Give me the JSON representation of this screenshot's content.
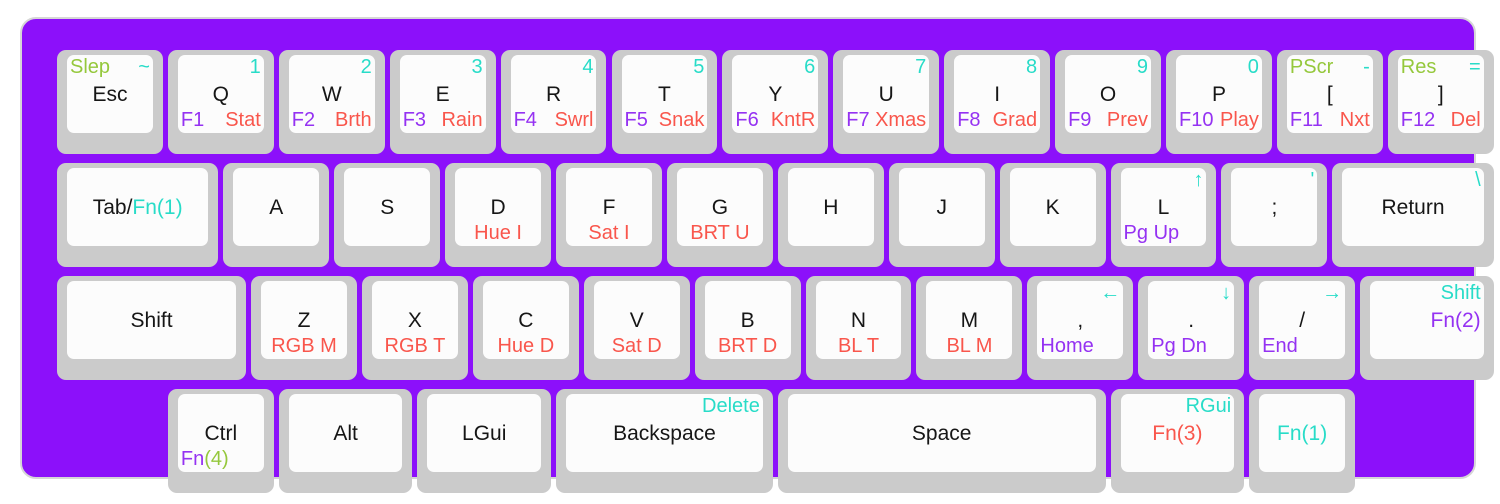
{
  "title": "keyboard-layout",
  "palette": {
    "plate": "#8C10FA",
    "plate_border": "#D6D6D6",
    "key_base": "#CBCBCB",
    "key_top": "#FCFCFC",
    "black": "#161616",
    "teal": "#28DCC8",
    "green": "#95C83C",
    "violet": "#9532F2",
    "red": "#F9564C",
    "page_bg": "#FFFFFF"
  },
  "keys": [
    {
      "id": "esc",
      "row": 0,
      "x": 0,
      "w": 1,
      "legends": {
        "tl": [
          [
            "Slep",
            "green"
          ]
        ],
        "tr": [
          [
            "~",
            "teal"
          ]
        ],
        "c": [
          [
            "Esc",
            "black"
          ]
        ]
      }
    },
    {
      "id": "q",
      "row": 0,
      "x": 1,
      "w": 1,
      "legends": {
        "tr": [
          [
            "1",
            "teal"
          ]
        ],
        "c": [
          [
            "Q",
            "black"
          ]
        ],
        "bl": [
          [
            "F1",
            "violet"
          ]
        ],
        "br": [
          [
            "Stat",
            "red"
          ]
        ]
      }
    },
    {
      "id": "w",
      "row": 0,
      "x": 2,
      "w": 1,
      "legends": {
        "tr": [
          [
            "2",
            "teal"
          ]
        ],
        "c": [
          [
            "W",
            "black"
          ]
        ],
        "bl": [
          [
            "F2",
            "violet"
          ]
        ],
        "br": [
          [
            "Brth",
            "red"
          ]
        ]
      }
    },
    {
      "id": "e",
      "row": 0,
      "x": 3,
      "w": 1,
      "legends": {
        "tr": [
          [
            "3",
            "teal"
          ]
        ],
        "c": [
          [
            "E",
            "black"
          ]
        ],
        "bl": [
          [
            "F3",
            "violet"
          ]
        ],
        "br": [
          [
            "Rain",
            "red"
          ]
        ]
      }
    },
    {
      "id": "r",
      "row": 0,
      "x": 4,
      "w": 1,
      "legends": {
        "tr": [
          [
            "4",
            "teal"
          ]
        ],
        "c": [
          [
            "R",
            "black"
          ]
        ],
        "bl": [
          [
            "F4",
            "violet"
          ]
        ],
        "br": [
          [
            "Swrl",
            "red"
          ]
        ]
      }
    },
    {
      "id": "t",
      "row": 0,
      "x": 5,
      "w": 1,
      "legends": {
        "tr": [
          [
            "5",
            "teal"
          ]
        ],
        "c": [
          [
            "T",
            "black"
          ]
        ],
        "bl": [
          [
            "F5",
            "violet"
          ]
        ],
        "br": [
          [
            "Snak",
            "red"
          ]
        ]
      }
    },
    {
      "id": "y",
      "row": 0,
      "x": 6,
      "w": 1,
      "legends": {
        "tr": [
          [
            "6",
            "teal"
          ]
        ],
        "c": [
          [
            "Y",
            "black"
          ]
        ],
        "bl": [
          [
            "F6",
            "violet"
          ]
        ],
        "br": [
          [
            "KntR",
            "red"
          ]
        ]
      }
    },
    {
      "id": "u",
      "row": 0,
      "x": 7,
      "w": 1,
      "legends": {
        "tr": [
          [
            "7",
            "teal"
          ]
        ],
        "c": [
          [
            "U",
            "black"
          ]
        ],
        "bl": [
          [
            "F7",
            "violet"
          ]
        ],
        "br": [
          [
            "Xmas",
            "red"
          ]
        ]
      }
    },
    {
      "id": "i",
      "row": 0,
      "x": 8,
      "w": 1,
      "legends": {
        "tr": [
          [
            "8",
            "teal"
          ]
        ],
        "c": [
          [
            "I",
            "black"
          ]
        ],
        "bl": [
          [
            "F8",
            "violet"
          ]
        ],
        "br": [
          [
            "Grad",
            "red"
          ]
        ]
      }
    },
    {
      "id": "o",
      "row": 0,
      "x": 9,
      "w": 1,
      "legends": {
        "tr": [
          [
            "9",
            "teal"
          ]
        ],
        "c": [
          [
            "O",
            "black"
          ]
        ],
        "bl": [
          [
            "F9",
            "violet"
          ]
        ],
        "br": [
          [
            "Prev",
            "red"
          ]
        ]
      }
    },
    {
      "id": "p",
      "row": 0,
      "x": 10,
      "w": 1,
      "legends": {
        "tr": [
          [
            "0",
            "teal"
          ]
        ],
        "c": [
          [
            "P",
            "black"
          ]
        ],
        "bl": [
          [
            "F10",
            "violet"
          ]
        ],
        "br": [
          [
            "Play",
            "red"
          ]
        ]
      }
    },
    {
      "id": "lbracket",
      "row": 0,
      "x": 11,
      "w": 1,
      "legends": {
        "tl": [
          [
            "PScr",
            "green"
          ]
        ],
        "tr": [
          [
            "-",
            "teal"
          ]
        ],
        "c": [
          [
            "[",
            "black"
          ]
        ],
        "bl": [
          [
            "F11",
            "violet"
          ]
        ],
        "br": [
          [
            "Nxt",
            "red"
          ]
        ]
      }
    },
    {
      "id": "rbracket",
      "row": 0,
      "x": 12,
      "w": 1,
      "legends": {
        "tl": [
          [
            "Res",
            "green"
          ]
        ],
        "tr": [
          [
            "=",
            "teal"
          ]
        ],
        "c": [
          [
            "]",
            "black"
          ]
        ],
        "bl": [
          [
            "F12",
            "violet"
          ]
        ],
        "br": [
          [
            "Del",
            "red"
          ]
        ]
      }
    },
    {
      "id": "tab",
      "row": 1,
      "x": 0,
      "w": 1.5,
      "legends": {
        "c": [
          [
            "Tab/",
            "black"
          ],
          [
            "Fn(1)",
            "teal"
          ]
        ]
      }
    },
    {
      "id": "a",
      "row": 1,
      "x": 1.5,
      "w": 1,
      "legends": {
        "c": [
          [
            "A",
            "black"
          ]
        ]
      }
    },
    {
      "id": "s",
      "row": 1,
      "x": 2.5,
      "w": 1,
      "legends": {
        "c": [
          [
            "S",
            "black"
          ]
        ]
      }
    },
    {
      "id": "d",
      "row": 1,
      "x": 3.5,
      "w": 1,
      "legends": {
        "c": [
          [
            "D",
            "black"
          ]
        ],
        "bc": [
          [
            "Hue I",
            "red"
          ]
        ]
      }
    },
    {
      "id": "f",
      "row": 1,
      "x": 4.5,
      "w": 1,
      "legends": {
        "c": [
          [
            "F",
            "black"
          ]
        ],
        "bc": [
          [
            "Sat I",
            "red"
          ]
        ]
      }
    },
    {
      "id": "g",
      "row": 1,
      "x": 5.5,
      "w": 1,
      "legends": {
        "c": [
          [
            "G",
            "black"
          ]
        ],
        "bc": [
          [
            "BRT U",
            "red"
          ]
        ]
      }
    },
    {
      "id": "h",
      "row": 1,
      "x": 6.5,
      "w": 1,
      "legends": {
        "c": [
          [
            "H",
            "black"
          ]
        ]
      }
    },
    {
      "id": "j",
      "row": 1,
      "x": 7.5,
      "w": 1,
      "legends": {
        "c": [
          [
            "J",
            "black"
          ]
        ]
      }
    },
    {
      "id": "k",
      "row": 1,
      "x": 8.5,
      "w": 1,
      "legends": {
        "c": [
          [
            "K",
            "black"
          ]
        ]
      }
    },
    {
      "id": "l",
      "row": 1,
      "x": 9.5,
      "w": 1,
      "legends": {
        "tr": [
          [
            "↑",
            "teal"
          ]
        ],
        "c": [
          [
            "L",
            "black"
          ]
        ],
        "bl": [
          [
            "Pg Up",
            "violet"
          ]
        ]
      }
    },
    {
      "id": "semicolon",
      "row": 1,
      "x": 10.5,
      "w": 1,
      "legends": {
        "tr": [
          [
            "'",
            "teal"
          ]
        ],
        "c": [
          [
            ";",
            "black"
          ]
        ]
      }
    },
    {
      "id": "return",
      "row": 1,
      "x": 11.5,
      "w": 1.5,
      "legends": {
        "tr": [
          [
            "\\",
            "teal"
          ]
        ],
        "c": [
          [
            "Return",
            "black"
          ]
        ]
      }
    },
    {
      "id": "lshift",
      "row": 2,
      "x": 0,
      "w": 1.75,
      "legends": {
        "c": [
          [
            "Shift",
            "black"
          ]
        ]
      }
    },
    {
      "id": "z",
      "row": 2,
      "x": 1.75,
      "w": 1,
      "legends": {
        "c": [
          [
            "Z",
            "black"
          ]
        ],
        "bc": [
          [
            "RGB M",
            "red"
          ]
        ]
      }
    },
    {
      "id": "x",
      "row": 2,
      "x": 2.75,
      "w": 1,
      "legends": {
        "c": [
          [
            "X",
            "black"
          ]
        ],
        "bc": [
          [
            "RGB T",
            "red"
          ]
        ]
      }
    },
    {
      "id": "c",
      "row": 2,
      "x": 3.75,
      "w": 1,
      "legends": {
        "c": [
          [
            "C",
            "black"
          ]
        ],
        "bc": [
          [
            "Hue D",
            "red"
          ]
        ]
      }
    },
    {
      "id": "v",
      "row": 2,
      "x": 4.75,
      "w": 1,
      "legends": {
        "c": [
          [
            "V",
            "black"
          ]
        ],
        "bc": [
          [
            "Sat D",
            "red"
          ]
        ]
      }
    },
    {
      "id": "b",
      "row": 2,
      "x": 5.75,
      "w": 1,
      "legends": {
        "c": [
          [
            "B",
            "black"
          ]
        ],
        "bc": [
          [
            "BRT D",
            "red"
          ]
        ]
      }
    },
    {
      "id": "n",
      "row": 2,
      "x": 6.75,
      "w": 1,
      "legends": {
        "c": [
          [
            "N",
            "black"
          ]
        ],
        "bc": [
          [
            "BL T",
            "red"
          ]
        ]
      }
    },
    {
      "id": "m",
      "row": 2,
      "x": 7.75,
      "w": 1,
      "legends": {
        "c": [
          [
            "M",
            "black"
          ]
        ],
        "bc": [
          [
            "BL M",
            "red"
          ]
        ]
      }
    },
    {
      "id": "comma",
      "row": 2,
      "x": 8.75,
      "w": 1,
      "legends": {
        "tr": [
          [
            "←",
            "teal"
          ]
        ],
        "c": [
          [
            ",",
            "black"
          ]
        ],
        "bl": [
          [
            "Home",
            "violet"
          ]
        ]
      }
    },
    {
      "id": "period",
      "row": 2,
      "x": 9.75,
      "w": 1,
      "legends": {
        "tr": [
          [
            "↓",
            "teal"
          ]
        ],
        "c": [
          [
            ".",
            "black"
          ]
        ],
        "bl": [
          [
            "Pg Dn",
            "violet"
          ]
        ]
      }
    },
    {
      "id": "slash",
      "row": 2,
      "x": 10.75,
      "w": 1,
      "legends": {
        "tr": [
          [
            "→",
            "teal"
          ]
        ],
        "c": [
          [
            "/",
            "black"
          ]
        ],
        "bl": [
          [
            "End",
            "violet"
          ]
        ]
      }
    },
    {
      "id": "rshift",
      "row": 2,
      "x": 11.75,
      "w": 1.25,
      "legends": {
        "tr": [
          [
            "Shift",
            "teal"
          ]
        ],
        "mr": [
          [
            "Fn(2)",
            "violet"
          ]
        ]
      }
    },
    {
      "id": "ctrl",
      "row": 3,
      "x": 1,
      "w": 1,
      "legends": {
        "c": [
          [
            "Ctrl",
            "black"
          ]
        ],
        "bl": [
          [
            "Fn",
            "violet"
          ],
          [
            "(4)",
            "green"
          ]
        ]
      }
    },
    {
      "id": "alt",
      "row": 3,
      "x": 2,
      "w": 1.25,
      "legends": {
        "c": [
          [
            "Alt",
            "black"
          ]
        ]
      }
    },
    {
      "id": "lgui",
      "row": 3,
      "x": 3.25,
      "w": 1.25,
      "legends": {
        "c": [
          [
            "LGui",
            "black"
          ]
        ]
      }
    },
    {
      "id": "backspace",
      "row": 3,
      "x": 4.5,
      "w": 2,
      "legends": {
        "tr": [
          [
            "Delete",
            "teal"
          ]
        ],
        "c": [
          [
            "Backspace",
            "black"
          ]
        ]
      }
    },
    {
      "id": "space",
      "row": 3,
      "x": 6.5,
      "w": 3,
      "legends": {
        "c": [
          [
            "Space",
            "black"
          ]
        ]
      }
    },
    {
      "id": "fn3",
      "row": 3,
      "x": 9.5,
      "w": 1.25,
      "legends": {
        "tr": [
          [
            "RGui",
            "teal"
          ]
        ],
        "c": [
          [
            "Fn(3)",
            "red"
          ]
        ]
      }
    },
    {
      "id": "fn1",
      "row": 3,
      "x": 10.75,
      "w": 1,
      "legends": {
        "c": [
          [
            "Fn(1)",
            "teal"
          ]
        ]
      }
    }
  ]
}
